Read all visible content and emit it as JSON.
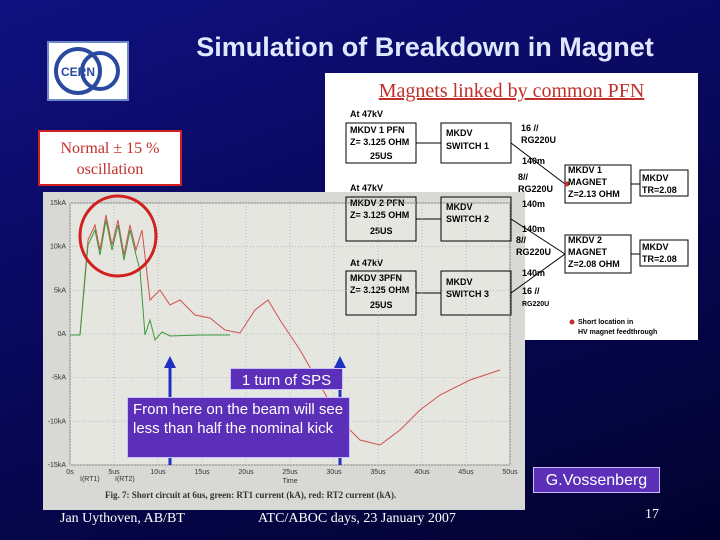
{
  "header": {
    "logo": "CERN",
    "title": "Simulation of Breakdown in Magnet"
  },
  "callouts": {
    "pfn": "Magnets linked by common PFN",
    "normal": [
      "Normal ± 15 %",
      "oscillation"
    ],
    "turn": "1 turn of SPS",
    "beam": "From here on the beam will see less than half the nominal kick",
    "author": "G.Vossenberg"
  },
  "figure": {
    "yticks": [
      "15kA",
      "10kA",
      "5kA",
      "0A",
      "-5kA",
      "-10kA",
      "-15kA"
    ],
    "xticks": [
      "0s",
      "5us",
      "10us",
      "15us",
      "20us",
      "25us",
      "30us",
      "35us",
      "40us",
      "45us",
      "50us"
    ],
    "legend": [
      "I(RT1)",
      "I(RT2)"
    ],
    "xlabel": "Time",
    "caption": "Fig. 7: Short circuit at 6us, green: RT1 current (kA), red: RT2 current (kA)."
  },
  "diagram": {
    "labels": [
      "At 47kV",
      "MKDV 1 PFN",
      "Z= 3.125 OHM",
      "25US",
      "MKDV",
      "SWITCH 1",
      "16 //",
      "RG220U",
      "140m",
      "8//",
      "RG220U",
      "MKDV 1",
      "MAGNET",
      "Z=2.13 OHM",
      "MKDV",
      "TR=2.08",
      "At 47kV",
      "MKDV 2 PFN",
      "Z= 3.125 OHM",
      "25US",
      "MKDV",
      "SWITCH 2",
      "140m",
      "140m",
      "8//",
      "RG220U",
      "MKDV 2",
      "MAGNET",
      "Z=2.08 OHM",
      "MKDV",
      "TR=2.08",
      "At 47kV",
      "MKDV 3PFN",
      "Z= 3.125 OHM",
      "25US",
      "MKDV",
      "SWITCH 3",
      "140m",
      "16 //",
      "RG220U",
      "Short location in",
      "HV magnet feedthrough"
    ]
  },
  "footer": {
    "left": "Jan Uythoven, AB/BT",
    "center": "ATC/ABOC days, 23 January 2007",
    "page": "17"
  }
}
